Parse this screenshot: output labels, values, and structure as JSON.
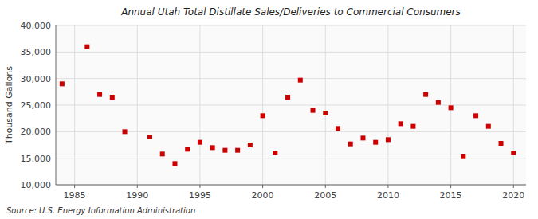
{
  "chart_data": {
    "type": "scatter",
    "title": "Annual Utah Total Distillate Sales/Deliveries to Commercial Consumers",
    "ylabel": "Thousand Gallons",
    "source": "Source: U.S. Energy Information Administration",
    "x": [
      1984,
      1986,
      1987,
      1988,
      1989,
      1991,
      1992,
      1993,
      1994,
      1995,
      1996,
      1997,
      1998,
      1999,
      2000,
      2001,
      2002,
      2003,
      2004,
      2005,
      2006,
      2007,
      2008,
      2009,
      2010,
      2011,
      2012,
      2013,
      2014,
      2015,
      2016,
      2017,
      2018,
      2019,
      2020
    ],
    "values": [
      29000,
      36000,
      27000,
      26500,
      20000,
      19000,
      15800,
      14000,
      16700,
      18000,
      17000,
      16500,
      16500,
      17500,
      23000,
      16000,
      26500,
      29700,
      24000,
      23500,
      20600,
      17700,
      18800,
      18000,
      18500,
      21500,
      21000,
      27000,
      25500,
      24500,
      15300,
      23000,
      21000,
      17800,
      16000
    ],
    "color": "#cc0000",
    "marker": "square",
    "xlim": [
      1983.5,
      2021
    ],
    "xticks": [
      1985,
      1990,
      1995,
      2000,
      2005,
      2010,
      2015,
      2020
    ],
    "ylim": [
      10000,
      40000
    ],
    "yticks": [
      {
        "value": 10000,
        "label": "10,000"
      },
      {
        "value": 15000,
        "label": "15,000"
      },
      {
        "value": 20000,
        "label": "20,000"
      },
      {
        "value": 25000,
        "label": "25,000"
      },
      {
        "value": 30000,
        "label": "30,000"
      },
      {
        "value": 35000,
        "label": "35,000"
      },
      {
        "value": 40000,
        "label": "40,000"
      }
    ],
    "grid": true
  }
}
